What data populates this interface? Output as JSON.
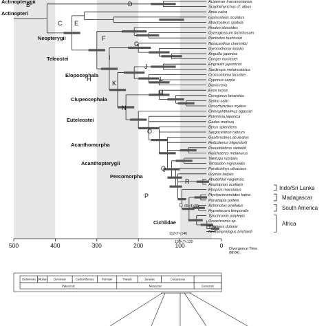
{
  "taxa": [
    "Acipenser transmontanus",
    "Scaphirhynchus cf. albus",
    "Amia calva",
    "Lepisosteus oculatus",
    "Atractosteus spatula",
    "Hiodon alosoides",
    "Osteoglossum bicirrhosum",
    "Pantodon buchholzi",
    "Notacanthus chemnitzi",
    "Gymnothorax kidako",
    "Anguilla japonica",
    "Conger myriaster",
    "Engraulis japonicus",
    "Sardinops melanostictus",
    "Crossostoma lacustre",
    "Cyprinus carpio",
    "Danio rerio",
    "Esox lucius",
    "Coregonus lavaretus",
    "Salmo salar",
    "Oncorhynchus mykiss",
    "Chlorophthalmus agassizi",
    "Polymixia japonica",
    "Gadus morhua",
    "Beryx splendens",
    "Sargocentron rubrum",
    "Gasterosteus aculeatus",
    "Helicolenus hilgendorfi",
    "Pseudolabrus sieboldi",
    "Halichoeres melanurus",
    "Takifugu rubripes",
    "Tetraodon nigroviridis",
    "Paralichthys olivaceus",
    "Oryzias latipes",
    "Abudefduf vaigiensis",
    "Amphiprion ocellaris",
    "Etroplus maculatus",
    "Ptychochromoides katria",
    "Paratilapia polleni",
    "Astronotus ocellatus",
    "Hypselecara temporalis",
    "Tylochromis polylepis",
    "Oreochromis sp.",
    "Tropheus duboisi",
    "Neolamprologus brichardi"
  ],
  "clade_labels": [
    "Actinopterygii",
    "Actinopteri",
    "Neopterygii",
    "Teleostei",
    "Elopocephala",
    "Clupeocephala",
    "Euteleostei",
    "Acanthomorpha",
    "Acanthopterygii",
    "Percomorpha",
    "Cichlidae"
  ],
  "node_letters": [
    "B",
    "C",
    "D",
    "E",
    "F",
    "G",
    "H",
    "I",
    "J",
    "K",
    "L",
    "M",
    "N",
    "O",
    "P",
    "Q",
    "R"
  ],
  "calibrations": [
    "65<T<86",
    "112<T<146",
    "100<T<120"
  ],
  "regions": [
    "Indo/Sri Lanka",
    "Madagascar",
    "South America",
    "Africa"
  ],
  "axis": {
    "ticks": [
      "500",
      "400",
      "300",
      "200",
      "100",
      "0"
    ],
    "title_line1": "Divergence Time",
    "title_line2": "(MYA)"
  },
  "periods": [
    "Ordovician",
    "Silurian",
    "Devonian",
    "Carboniferous",
    "Permian",
    "Triassic",
    "Jurassic",
    "Cretaceous"
  ],
  "eras": [
    "Paleozoic",
    "Mesozoic",
    "Cenozoic"
  ]
}
